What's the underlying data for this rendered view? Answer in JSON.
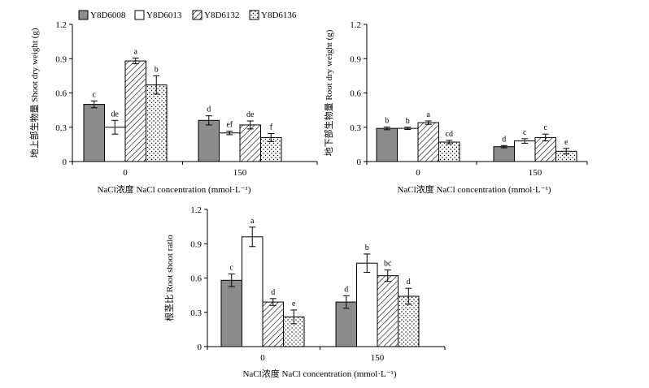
{
  "legend": [
    {
      "name": "Y8D6008",
      "pattern": "solid-gray"
    },
    {
      "name": "Y8D6013",
      "pattern": "white"
    },
    {
      "name": "Y8D6132",
      "pattern": "diagonal"
    },
    {
      "name": "Y8D6136",
      "pattern": "dots"
    }
  ],
  "colors": {
    "solid_gray": "#8c8c8c",
    "axis": "#000000",
    "white": "#ffffff"
  },
  "chart_data": [
    {
      "type": "bar",
      "ylabel": "地上部生物量 Shoot dry weight (g)",
      "xlabel": "NaCl浓度 NaCl concentration (mmol·L⁻¹)",
      "categories": [
        "0",
        "150"
      ],
      "ylim": [
        0,
        1.2
      ],
      "yticks": [
        "0",
        "0.3",
        "0.6",
        "0.9",
        "1.2"
      ],
      "series": [
        {
          "name": "Y8D6008",
          "values": [
            0.5,
            0.36
          ],
          "errors": [
            0.03,
            0.04
          ],
          "letters": [
            "c",
            "d"
          ]
        },
        {
          "name": "Y8D6013",
          "values": [
            0.3,
            0.25
          ],
          "errors": [
            0.06,
            0.015
          ],
          "letters": [
            "de",
            "ef"
          ]
        },
        {
          "name": "Y8D6132",
          "values": [
            0.88,
            0.32
          ],
          "errors": [
            0.025,
            0.035
          ],
          "letters": [
            "a",
            "de"
          ]
        },
        {
          "name": "Y8D6136",
          "values": [
            0.67,
            0.21
          ],
          "errors": [
            0.08,
            0.035
          ],
          "letters": [
            "b",
            "f"
          ]
        }
      ]
    },
    {
      "type": "bar",
      "ylabel": "地下部生物量 Root dry weight (g)",
      "xlabel": "NaCl浓度 NaCl concentration (mmol·L⁻¹)",
      "categories": [
        "0",
        "150"
      ],
      "ylim": [
        0,
        1.2
      ],
      "yticks": [
        "0",
        "0.3",
        "0.6",
        "0.9",
        "1.2"
      ],
      "series": [
        {
          "name": "Y8D6008",
          "values": [
            0.29,
            0.13
          ],
          "errors": [
            0.012,
            0.01
          ],
          "letters": [
            "b",
            "d"
          ]
        },
        {
          "name": "Y8D6013",
          "values": [
            0.29,
            0.18
          ],
          "errors": [
            0.01,
            0.02
          ],
          "letters": [
            "b",
            "c"
          ]
        },
        {
          "name": "Y8D6132",
          "values": [
            0.34,
            0.21
          ],
          "errors": [
            0.015,
            0.03
          ],
          "letters": [
            "a",
            "c"
          ]
        },
        {
          "name": "Y8D6136",
          "values": [
            0.17,
            0.09
          ],
          "errors": [
            0.015,
            0.025
          ],
          "letters": [
            "cd",
            "e"
          ]
        }
      ]
    },
    {
      "type": "bar",
      "ylabel": "根茎比 Root shoot ratio",
      "xlabel": "NaCl浓度 NaCl concentration (mmol·L⁻¹)",
      "categories": [
        "0",
        "150"
      ],
      "ylim": [
        0,
        1.2
      ],
      "yticks": [
        "0",
        "0.3",
        "0.6",
        "0.9",
        "1.2"
      ],
      "series": [
        {
          "name": "Y8D6008",
          "values": [
            0.58,
            0.39
          ],
          "errors": [
            0.055,
            0.055
          ],
          "letters": [
            "c",
            "d"
          ]
        },
        {
          "name": "Y8D6013",
          "values": [
            0.96,
            0.73
          ],
          "errors": [
            0.085,
            0.08
          ],
          "letters": [
            "a",
            "b"
          ]
        },
        {
          "name": "Y8D6132",
          "values": [
            0.39,
            0.62
          ],
          "errors": [
            0.03,
            0.05
          ],
          "letters": [
            "d",
            "bc"
          ]
        },
        {
          "name": "Y8D6136",
          "values": [
            0.26,
            0.44
          ],
          "errors": [
            0.06,
            0.07
          ],
          "letters": [
            "e",
            "d"
          ]
        }
      ]
    }
  ]
}
